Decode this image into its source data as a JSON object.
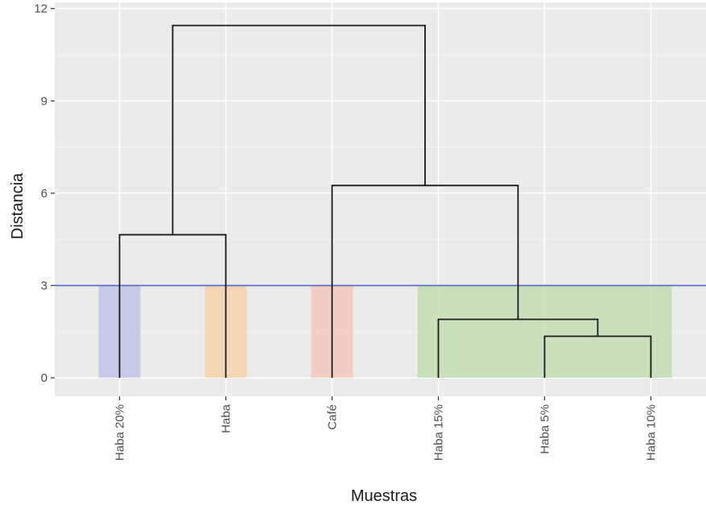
{
  "chart_data": {
    "type": "dendrogram",
    "xlabel": "Muestras",
    "ylabel": "Distancia",
    "ylim": [
      -0.6,
      12.2
    ],
    "yticks": [
      0,
      3,
      6,
      9,
      12
    ],
    "grid": true,
    "leaves": [
      "Haba 20%",
      "Haba",
      "Café",
      "Haba 15%",
      "Haba 5%",
      "Haba 10%"
    ],
    "merges": [
      {
        "left": 5,
        "right": 6,
        "height": 1.35,
        "from_left": "leaf",
        "from_right": "leaf"
      },
      {
        "left": 4,
        "right": 5.5,
        "height": 1.9,
        "from_left": "leaf",
        "from_right": 1.35
      },
      {
        "left": 3,
        "right": 4.75,
        "height": 6.25,
        "from_left": "leaf",
        "from_right": 1.9
      },
      {
        "left": 1,
        "right": 2,
        "height": 4.65,
        "from_left": "leaf",
        "from_right": "leaf"
      },
      {
        "left": 1.5,
        "right": 3.875,
        "height": 11.45,
        "from_left": 4.65,
        "from_right": 6.25
      }
    ],
    "cut_height": 3,
    "cut_color": "#5b6fc4",
    "clusters": [
      {
        "from": 1,
        "to": 1,
        "color": "#b9bfe6"
      },
      {
        "from": 2,
        "to": 2,
        "color": "#f6cfa3"
      },
      {
        "from": 3,
        "to": 3,
        "color": "#f3c3b6"
      },
      {
        "from": 4,
        "to": 6,
        "color": "#bfdcac"
      }
    ]
  }
}
